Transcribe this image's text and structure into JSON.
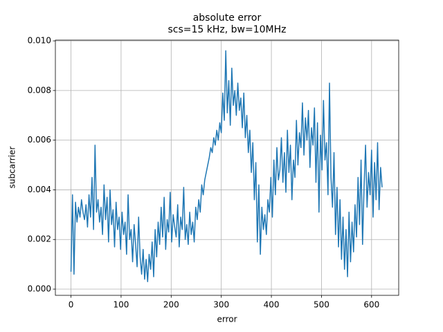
{
  "chart_data": {
    "type": "line",
    "title": "absolute error",
    "subtitle": "scs=15 kHz, bw=10MHz",
    "x_label": "error",
    "y_label": "subcarrier",
    "x": [
      0,
      3,
      6,
      9,
      12,
      15,
      18,
      21,
      24,
      27,
      30,
      33,
      36,
      39,
      42,
      45,
      48,
      51,
      54,
      57,
      60,
      63,
      66,
      69,
      72,
      75,
      78,
      81,
      84,
      87,
      90,
      93,
      96,
      99,
      102,
      105,
      108,
      111,
      114,
      117,
      120,
      123,
      126,
      129,
      132,
      135,
      138,
      141,
      144,
      147,
      150,
      153,
      156,
      159,
      162,
      165,
      168,
      171,
      174,
      177,
      180,
      183,
      186,
      189,
      192,
      195,
      198,
      201,
      204,
      207,
      210,
      213,
      216,
      219,
      222,
      225,
      228,
      231,
      234,
      237,
      240,
      243,
      246,
      249,
      252,
      255,
      258,
      261,
      264,
      267,
      270,
      273,
      276,
      279,
      282,
      285,
      288,
      291,
      294,
      297,
      300,
      303,
      306,
      309,
      312,
      315,
      318,
      321,
      324,
      327,
      330,
      333,
      336,
      339,
      342,
      345,
      348,
      351,
      354,
      357,
      360,
      363,
      366,
      369,
      372,
      375,
      378,
      381,
      384,
      387,
      390,
      393,
      396,
      399,
      402,
      405,
      408,
      411,
      414,
      417,
      420,
      423,
      426,
      429,
      432,
      435,
      438,
      441,
      444,
      447,
      450,
      453,
      456,
      459,
      462,
      465,
      468,
      471,
      474,
      477,
      480,
      483,
      486,
      489,
      492,
      495,
      498,
      501,
      504,
      507,
      510,
      513,
      516,
      519,
      522,
      525,
      528,
      531,
      534,
      537,
      540,
      543,
      546,
      549,
      552,
      555,
      558,
      561,
      564,
      567,
      570,
      573,
      576,
      579,
      582,
      585,
      588,
      591,
      594,
      597,
      600,
      603,
      606,
      609,
      612,
      615,
      618,
      621
    ],
    "series": [
      {
        "color": "#1f77b4",
        "values": [
          0.0007,
          0.0038,
          0.0006,
          0.0035,
          0.0027,
          0.0033,
          0.0029,
          0.0036,
          0.0031,
          0.0028,
          0.0034,
          0.0025,
          0.0038,
          0.0029,
          0.0045,
          0.0024,
          0.0058,
          0.0031,
          0.0036,
          0.0027,
          0.0033,
          0.0022,
          0.0042,
          0.0028,
          0.0037,
          0.0019,
          0.004,
          0.0026,
          0.0032,
          0.0017,
          0.0035,
          0.0024,
          0.0029,
          0.0016,
          0.0031,
          0.0022,
          0.0027,
          0.0014,
          0.0038,
          0.002,
          0.0024,
          0.0011,
          0.0026,
          0.0018,
          0.0009,
          0.0029,
          0.0013,
          0.0006,
          0.0016,
          0.0004,
          0.0012,
          0.0003,
          0.0014,
          0.0008,
          0.0019,
          0.0005,
          0.0024,
          0.0013,
          0.0027,
          0.0018,
          0.0033,
          0.0021,
          0.0037,
          0.0016,
          0.0028,
          0.0023,
          0.0039,
          0.0019,
          0.003,
          0.0025,
          0.0021,
          0.0034,
          0.0017,
          0.0029,
          0.0024,
          0.0041,
          0.002,
          0.0026,
          0.0018,
          0.0031,
          0.0022,
          0.0027,
          0.0019,
          0.0033,
          0.0028,
          0.0036,
          0.0031,
          0.0042,
          0.0038,
          0.0044,
          0.0047,
          0.005,
          0.0053,
          0.0057,
          0.0055,
          0.0061,
          0.0058,
          0.0064,
          0.006,
          0.0067,
          0.0063,
          0.0079,
          0.0068,
          0.0096,
          0.0071,
          0.0084,
          0.0066,
          0.0089,
          0.0074,
          0.008,
          0.007,
          0.0083,
          0.0072,
          0.0077,
          0.0065,
          0.0079,
          0.0061,
          0.007,
          0.0055,
          0.0064,
          0.0047,
          0.0059,
          0.0036,
          0.0051,
          0.0019,
          0.0042,
          0.0014,
          0.0033,
          0.0024,
          0.003,
          0.0022,
          0.0036,
          0.0031,
          0.0045,
          0.0029,
          0.0052,
          0.0038,
          0.0057,
          0.0044,
          0.0048,
          0.0061,
          0.0043,
          0.0055,
          0.0039,
          0.0064,
          0.0047,
          0.0058,
          0.0036,
          0.0052,
          0.0045,
          0.0068,
          0.005,
          0.0063,
          0.0057,
          0.0075,
          0.0054,
          0.0069,
          0.006,
          0.0072,
          0.0049,
          0.0065,
          0.0058,
          0.0073,
          0.0043,
          0.0067,
          0.0031,
          0.0062,
          0.0048,
          0.0076,
          0.0052,
          0.0059,
          0.0038,
          0.0083,
          0.0045,
          0.0033,
          0.0055,
          0.0022,
          0.0041,
          0.0017,
          0.0036,
          0.0012,
          0.0029,
          0.0008,
          0.0024,
          0.0005,
          0.0031,
          0.0011,
          0.0027,
          0.0015,
          0.0034,
          0.0021,
          0.0045,
          0.0026,
          0.0052,
          0.0018,
          0.0041,
          0.0058,
          0.0033,
          0.0047,
          0.0038,
          0.0056,
          0.0029,
          0.0051,
          0.0036,
          0.0059,
          0.0032,
          0.0049,
          0.0041
        ]
      }
    ],
    "xlim": [
      -31.15,
      654.15
    ],
    "ylim": [
      -0.00025,
      0.01003
    ],
    "xticks": [
      0,
      100,
      200,
      300,
      400,
      500,
      600
    ],
    "yticks": [
      {
        "value": 0,
        "label": "0.000"
      },
      {
        "value": 0.002,
        "label": "0.002"
      },
      {
        "value": 0.004,
        "label": "0.004"
      },
      {
        "value": 0.006,
        "label": "0.006"
      },
      {
        "value": 0.008,
        "label": "0.008"
      },
      {
        "value": 0.01,
        "label": "0.010"
      }
    ],
    "grid": true
  }
}
